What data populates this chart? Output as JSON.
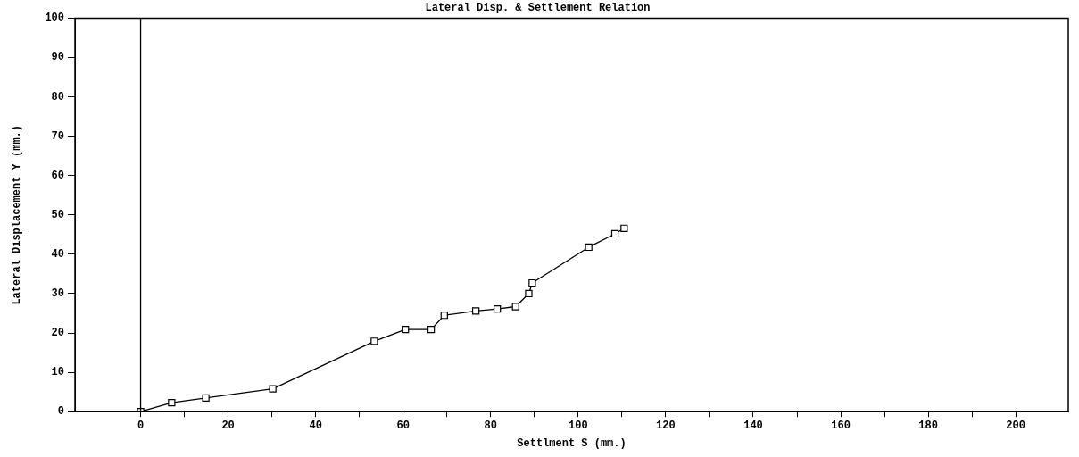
{
  "chart_data": {
    "type": "line",
    "title": "Lateral Disp. & Settlement Relation",
    "xlabel": "Settlment S (mm.)",
    "ylabel": "Lateral Displacement Y (mm.)",
    "x": [
      0,
      7.1,
      14.9,
      30.2,
      53.4,
      60.5,
      66.4,
      69.4,
      76.6,
      81.5,
      85.7,
      88.7,
      89.5,
      102.4,
      108.4,
      110.5
    ],
    "series": [
      {
        "color": "#000000",
        "values": [
          0,
          2.3,
          3.5,
          5.8,
          17.9,
          20.9,
          20.9,
          24.5,
          25.6,
          26.1,
          26.7,
          30,
          32.7,
          41.8,
          45.2,
          46.6
        ]
      }
    ],
    "xlim": [
      -15,
      212
    ],
    "xticks": [
      0,
      {
        "value": 10,
        "label": null
      },
      20,
      {
        "value": 30,
        "label": null
      },
      40,
      {
        "value": 50,
        "label": null
      },
      60,
      {
        "value": 70,
        "label": null
      },
      80,
      {
        "value": 90,
        "label": null
      },
      100,
      {
        "value": 110,
        "label": null
      },
      120,
      {
        "value": 130,
        "label": null
      },
      140,
      {
        "value": 150,
        "label": null
      },
      160,
      {
        "value": 170,
        "label": null
      },
      180,
      {
        "value": 190,
        "label": null
      },
      200
    ],
    "ylim": [
      0,
      100
    ],
    "yticks": [
      0,
      10,
      20,
      30,
      40,
      50,
      60,
      70,
      80,
      90,
      100
    ],
    "ref_lines": [
      {
        "axis": "x",
        "value": 0,
        "color": "#000000"
      }
    ],
    "grid": false,
    "legend": false,
    "marker": "square",
    "line_style": "solid"
  }
}
